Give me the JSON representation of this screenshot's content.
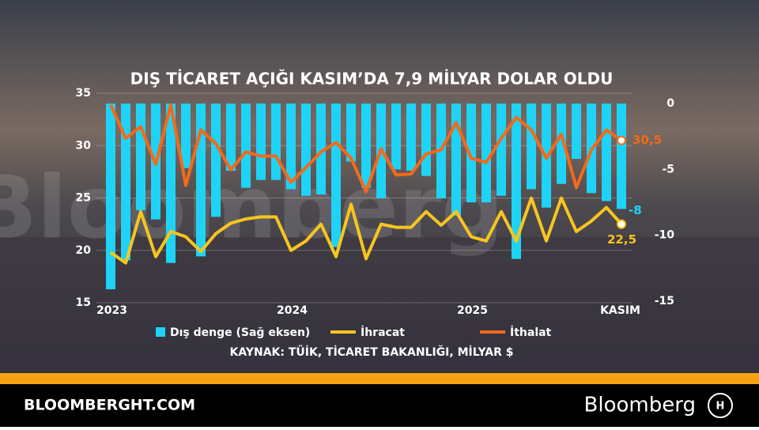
{
  "chart_data": {
    "type": "bar-line",
    "title": "DIŞ TİCARET AÇIĞI KASIM’DA 7,9 MİLYAR DOLAR OLDU",
    "source": "KAYNAK: TÜİK, TİCARET BAKANLIĞI, MİLYAR $",
    "watermark": "Bloomberg",
    "categories": [
      "2023",
      null,
      null,
      null,
      null,
      null,
      null,
      null,
      null,
      null,
      null,
      null,
      "2024",
      null,
      null,
      null,
      null,
      null,
      null,
      null,
      null,
      null,
      null,
      null,
      "2025",
      null,
      null,
      null,
      null,
      null,
      null,
      null,
      null,
      null,
      "KASIM"
    ],
    "series": [
      {
        "name": "Dış denge (Sağ eksen)",
        "type": "bar",
        "axis": "y2",
        "color": "#1fd3f7",
        "values": [
          -14.1,
          -11.9,
          -8.1,
          -8.8,
          -12.1,
          -4.9,
          -11.6,
          -8.6,
          -5.1,
          -6.4,
          -5.8,
          -5.8,
          -6.5,
          -7.0,
          -6.9,
          -10.9,
          -4.4,
          -6.4,
          -7.2,
          -5.0,
          -5.1,
          -5.5,
          -7.2,
          -8.5,
          -7.5,
          -7.5,
          -7.0,
          -11.8,
          -6.5,
          -7.9,
          -6.1,
          -4.2,
          -6.8,
          -7.4,
          -8
        ]
      },
      {
        "name": "İhracat",
        "type": "line",
        "color": "#f7c51e",
        "values": [
          19.8,
          18.8,
          23.7,
          19.4,
          21.8,
          21.3,
          19.9,
          21.6,
          22.6,
          23.0,
          23.2,
          23.2,
          20.0,
          20.9,
          22.5,
          19.4,
          24.4,
          19.2,
          22.5,
          22.2,
          22.2,
          23.7,
          22.4,
          23.7,
          21.3,
          20.9,
          23.7,
          20.9,
          25.0,
          20.9,
          25.0,
          21.8,
          22.8,
          24.1,
          22.5
        ],
        "value_labels": [
          null,
          null,
          null,
          null,
          null,
          null,
          null,
          null,
          null,
          null,
          null,
          null,
          null,
          null,
          null,
          null,
          null,
          null,
          null,
          null,
          null,
          null,
          null,
          null,
          null,
          null,
          null,
          null,
          null,
          null,
          null,
          null,
          null,
          null,
          "22,5"
        ]
      },
      {
        "name": "İthalat",
        "type": "line",
        "color": "#f26a1b",
        "values": [
          33.9,
          30.7,
          31.8,
          28.2,
          33.9,
          26.2,
          31.5,
          30.2,
          27.7,
          29.4,
          29.0,
          29.0,
          26.5,
          27.9,
          29.4,
          30.3,
          28.8,
          25.6,
          29.7,
          27.2,
          27.3,
          29.2,
          29.6,
          32.2,
          28.8,
          28.4,
          30.7,
          32.7,
          31.5,
          28.8,
          31.1,
          26.0,
          29.6,
          31.5,
          30.5
        ],
        "value_labels": [
          null,
          null,
          null,
          null,
          null,
          null,
          null,
          null,
          null,
          null,
          null,
          null,
          null,
          null,
          null,
          null,
          null,
          null,
          null,
          null,
          null,
          null,
          null,
          null,
          null,
          null,
          null,
          null,
          null,
          null,
          null,
          null,
          null,
          null,
          "30,5"
        ]
      }
    ],
    "ylim": [
      15,
      35
    ],
    "yticks": [
      15,
      20,
      25,
      30,
      35
    ],
    "y2lim": [
      -15,
      0
    ],
    "y2ticks": [
      -15,
      -10,
      -5,
      0
    ],
    "grid": true
  },
  "footer": {
    "site": "BLOOMBERGHT.COM",
    "brand": "Bloomberg"
  }
}
